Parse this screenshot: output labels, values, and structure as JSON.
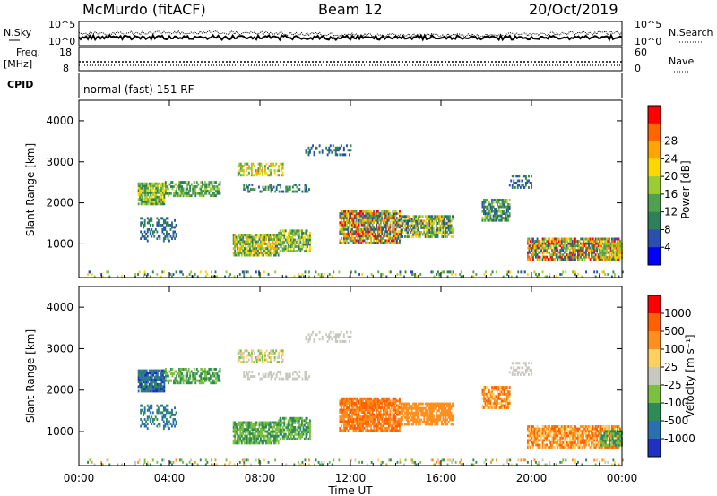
{
  "header": {
    "station": "McMurdo (fitACF)",
    "beam": "Beam 12",
    "date": "20/Oct/2019"
  },
  "top_panels": {
    "nsky_label": "N.Sky",
    "nsky_ticks": [
      "10^5",
      "10^0"
    ],
    "nsearch_label": "N.Search",
    "nsearch_ticks": [
      "10^5",
      "10^0"
    ],
    "freq_label_line1": "Freq.",
    "freq_label_line2": "[MHz]",
    "freq_ticks": [
      "18",
      "8"
    ],
    "nave_label": "Nave",
    "nave_ticks": [
      "60",
      "0"
    ],
    "cpid_label": "CPID",
    "cpid_text": "normal (fast) 151 RF"
  },
  "chart_data": [
    {
      "type": "heatmap",
      "name": "power",
      "ylabel": "Slant Range [km]",
      "yticks": [
        "1000",
        "2000",
        "3000",
        "4000"
      ],
      "ylim": [
        180,
        4500
      ],
      "xlim_hours": [
        0,
        24
      ],
      "colorbar_label": "Power [dB]",
      "colorbar_ticks": [
        "4",
        "8",
        "12",
        "16",
        "20",
        "24",
        "28"
      ],
      "colors": [
        "#0000ff",
        "#2a4fb0",
        "#2f7f5a",
        "#4fa050",
        "#9acd32",
        "#ffd700",
        "#ffa500",
        "#ff6600",
        "#ff0000"
      ]
    },
    {
      "type": "heatmap",
      "name": "velocity",
      "ylabel": "Slant Range [km]",
      "yticks": [
        "1000",
        "2000",
        "3000",
        "4000"
      ],
      "ylim": [
        180,
        4500
      ],
      "xlim_hours": [
        0,
        24
      ],
      "xticks": [
        "00:00",
        "04:00",
        "08:00",
        "12:00",
        "16:00",
        "20:00",
        "00:00"
      ],
      "xlabel": "Time UT",
      "colorbar_label": "Velocity [m s⁻¹]",
      "colorbar_ticks": [
        "1000",
        "500",
        "100",
        "25",
        "-25",
        "-100",
        "-500",
        "-1000"
      ],
      "colors": [
        "#2030c0",
        "#2a6fb0",
        "#2e8b57",
        "#7cc040",
        "#c8c8c0",
        "#ffd060",
        "#ff9020",
        "#ff6000",
        "#ff0000"
      ]
    }
  ]
}
